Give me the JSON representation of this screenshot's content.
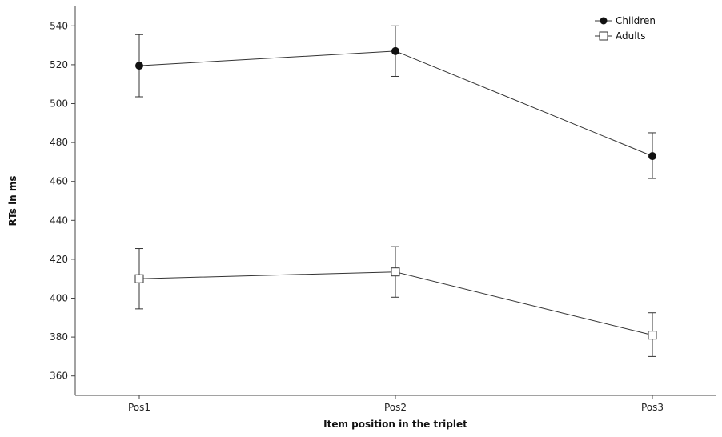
{
  "chart_data": {
    "type": "line",
    "title": "",
    "xlabel": "Item position in the triplet",
    "ylabel": "RTs in ms",
    "categories": [
      "Pos1",
      "Pos2",
      "Pos3"
    ],
    "ylim": [
      350,
      550
    ],
    "yticks": [
      360,
      380,
      400,
      420,
      440,
      460,
      480,
      500,
      520,
      540
    ],
    "grid": false,
    "legend_position": "top-right",
    "series": [
      {
        "name": "Children",
        "marker": "filled-circle",
        "values": [
          519.5,
          527,
          473
        ],
        "error_low": [
          503.5,
          514,
          461.5
        ],
        "error_high": [
          535.5,
          540,
          485
        ]
      },
      {
        "name": "Adults",
        "marker": "open-square",
        "values": [
          410,
          413.5,
          381
        ],
        "error_low": [
          394.5,
          400.5,
          370
        ],
        "error_high": [
          425.5,
          426.5,
          392.5
        ]
      }
    ]
  }
}
